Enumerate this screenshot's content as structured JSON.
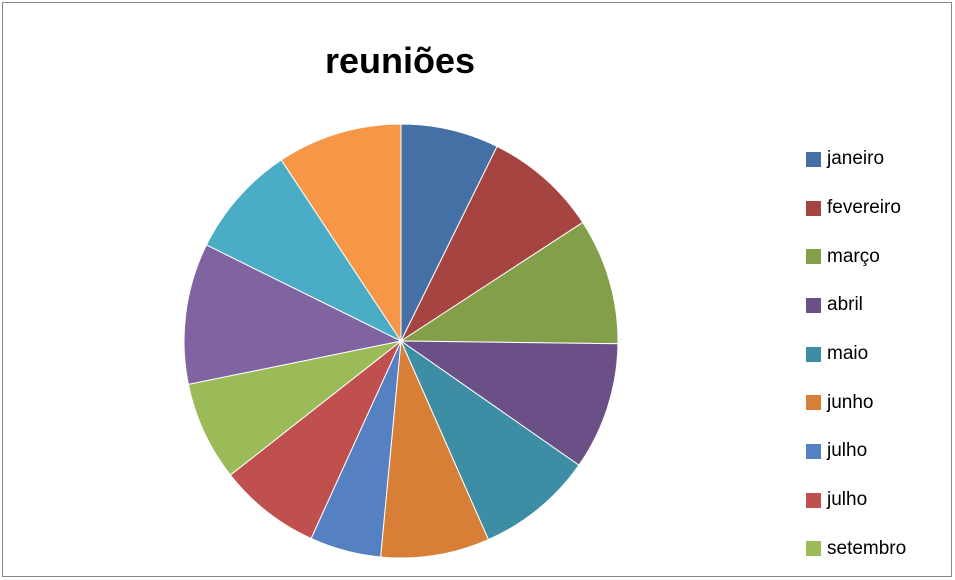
{
  "chart_data": {
    "type": "pie",
    "title": "reuniões",
    "legend_position": "right",
    "slices": [
      {
        "label": "janeiro",
        "value": 7.3,
        "color": "#4470A6"
      },
      {
        "label": "fevereiro",
        "value": 8.5,
        "color": "#A54441"
      },
      {
        "label": "março",
        "value": 9.4,
        "color": "#849F49"
      },
      {
        "label": "abril",
        "value": 9.5,
        "color": "#6B5088"
      },
      {
        "label": "maio",
        "value": 8.7,
        "color": "#3D8DA4"
      },
      {
        "label": "junho",
        "value": 8.1,
        "color": "#D77F36"
      },
      {
        "label": "julho",
        "value": 5.3,
        "color": "#5580C2"
      },
      {
        "label": "julho",
        "value": 7.6,
        "color": "#C0504D"
      },
      {
        "label": "setembro",
        "value": 7.4,
        "color": "#9BBB59"
      },
      {
        "label": "",
        "value": 10.5,
        "color": "#8064A2"
      },
      {
        "label": "",
        "value": 8.4,
        "color": "#4BACC6"
      },
      {
        "label": "",
        "value": 9.3,
        "color": "#F79646"
      }
    ]
  }
}
